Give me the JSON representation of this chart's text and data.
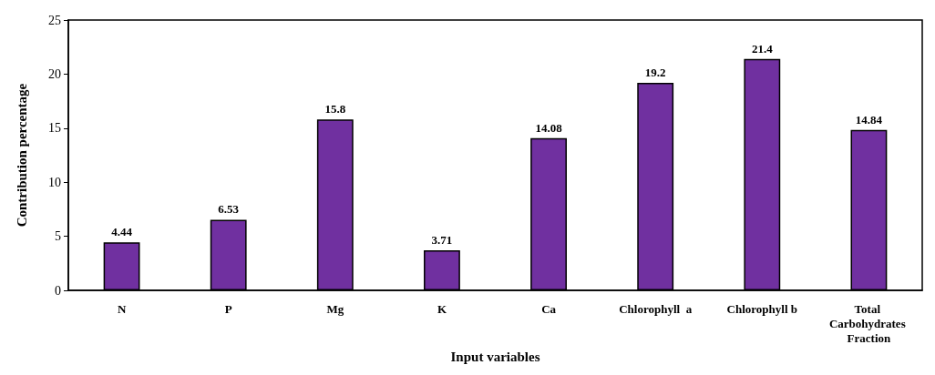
{
  "chart_data": {
    "type": "bar",
    "xlabel": "Input variables",
    "ylabel": "Contribution percentage",
    "categories": [
      "N",
      "P",
      "Mg",
      "K",
      "Ca",
      "Chlorophyll  a",
      "Chlorophyll b",
      "Total Carbohydrates Fraction"
    ],
    "values": [
      4.44,
      6.53,
      15.8,
      3.71,
      14.08,
      19.2,
      21.4,
      14.84
    ],
    "color": "#7030a0",
    "ylim": [
      0,
      25
    ],
    "yticks": [
      0,
      5,
      10,
      15,
      20,
      25
    ],
    "grid": false,
    "data_labels": true
  }
}
